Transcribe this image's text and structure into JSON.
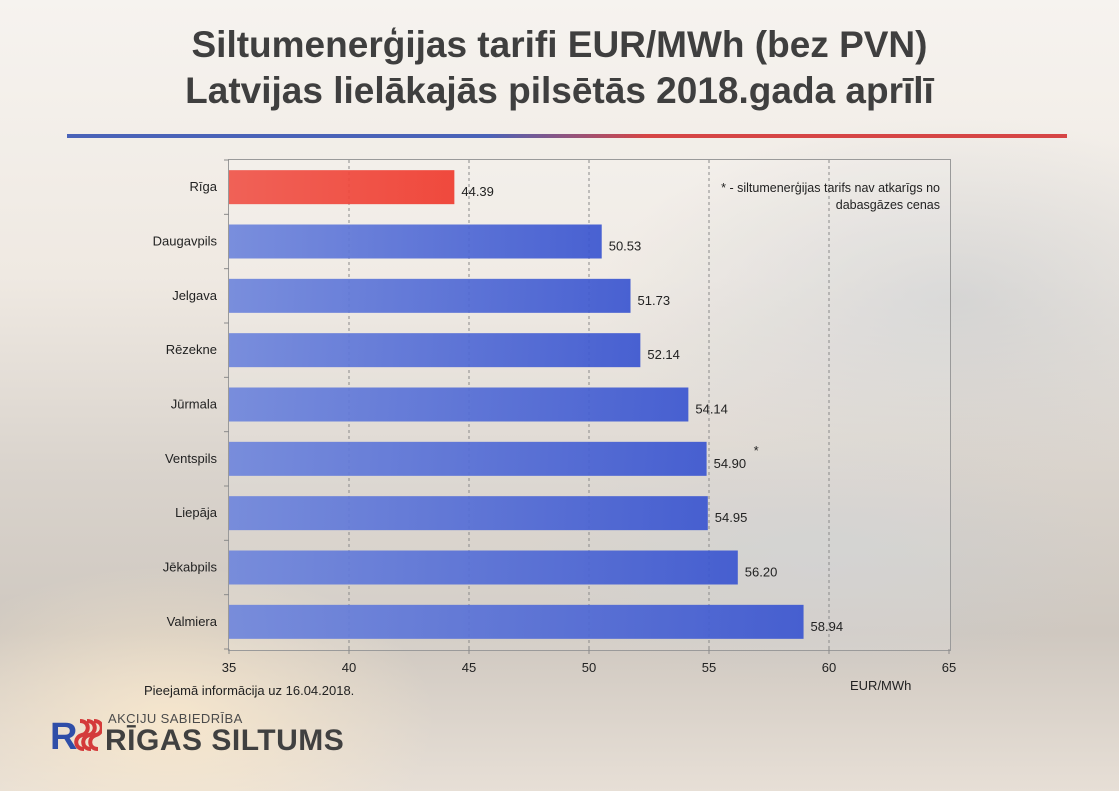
{
  "title": {
    "line1": "Siltumenerģijas tarifi EUR/MWh (bez PVN)",
    "line2": "Latvijas lielākajās pilsētās 2018.gada aprīlī"
  },
  "note": {
    "line1": "* - siltumenerģijas  tarifs nav atkarīgs no",
    "line2": "dabasgāzes cenas"
  },
  "unit_label": "EUR/MWh",
  "source_text": "Pieejamā informācija uz 16.04.2018.",
  "logo": {
    "mark": "RS",
    "top_text": "AKCIJU SABIEDRĪBA",
    "main_text": "RĪGAS SILTUMS"
  },
  "colors": {
    "highlight_bar": "#ef3b2e",
    "bar": "#3a55d0",
    "title_rule_blue": "#4a63b8",
    "title_rule_red": "#d64545"
  },
  "chart_data": {
    "type": "bar",
    "orientation": "horizontal",
    "categories": [
      "Rīga",
      "Daugavpils",
      "Jelgava",
      "Rēzekne",
      "Jūrmala",
      "Ventspils",
      "Liepāja",
      "Jēkabpils",
      "Valmiera"
    ],
    "values": [
      44.39,
      50.53,
      51.73,
      52.14,
      54.14,
      54.9,
      54.95,
      56.2,
      58.94
    ],
    "value_labels": [
      "44.39",
      "50.53",
      "51.73",
      "52.14",
      "54.14",
      "54.90",
      "54.95",
      "56.20",
      "58.94"
    ],
    "starred": [
      false,
      false,
      false,
      false,
      false,
      true,
      false,
      false,
      false
    ],
    "highlight": [
      true,
      false,
      false,
      false,
      false,
      false,
      false,
      false,
      false
    ],
    "xlim": [
      35,
      65
    ],
    "xticks": [
      35,
      40,
      45,
      50,
      55,
      60,
      65
    ],
    "xlabel": "EUR/MWh",
    "grid": "vertical-dashed"
  }
}
